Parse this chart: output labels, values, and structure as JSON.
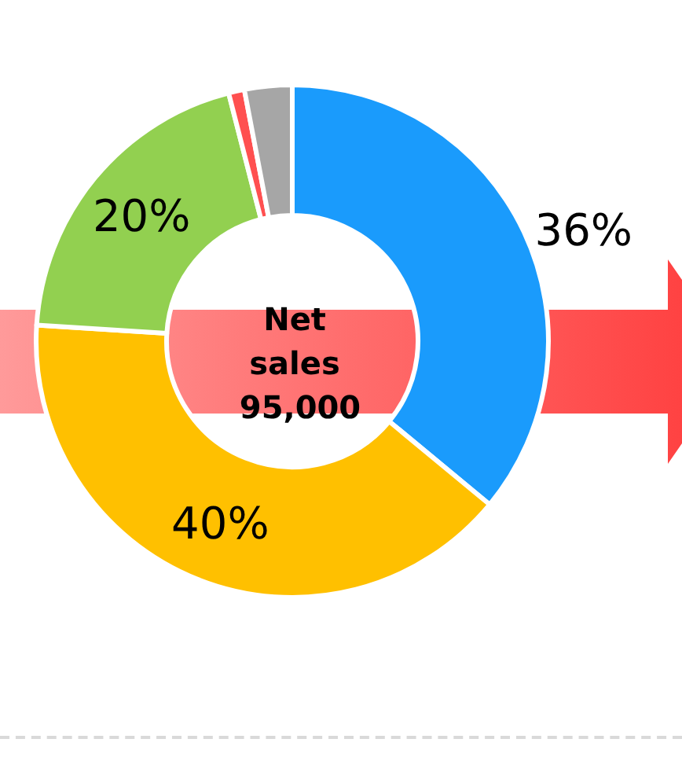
{
  "chart_data": {
    "type": "donut",
    "title": "Net sales 95,000",
    "categories": [
      null,
      null,
      null,
      null,
      null
    ],
    "values": [
      36,
      40,
      20,
      1,
      3
    ],
    "colors": [
      "#1a9bfc",
      "#ffc000",
      "#92d050",
      "#ff5050",
      "#a6a6a6"
    ],
    "value_labels": [
      "36%",
      "40%",
      "20%",
      null,
      null
    ],
    "legend": false
  }
}
